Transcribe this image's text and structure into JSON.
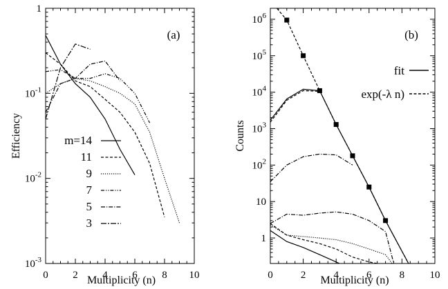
{
  "chart_data": [
    {
      "type": "line",
      "panel_label": "(a)",
      "xlabel": "Multiplicity (n)",
      "ylabel": "Efficiency",
      "xlim": [
        0,
        10
      ],
      "ylim": [
        0.001,
        1
      ],
      "yscale": "log",
      "grid": false,
      "legend_position": "bottom-left",
      "x_ticks": [
        0,
        2,
        4,
        6,
        8,
        10
      ],
      "y_ticks": [
        {
          "value": 1,
          "label": "1"
        },
        {
          "value": 0.1,
          "label": "10-1",
          "base": "10",
          "exp": "-1"
        },
        {
          "value": 0.01,
          "label": "10-2",
          "base": "10",
          "exp": "-2"
        },
        {
          "value": 0.001,
          "label": "10-3",
          "base": "10",
          "exp": "-3"
        }
      ],
      "series": [
        {
          "name": "m=14",
          "dash": "solid",
          "x": [
            0,
            1,
            2,
            3,
            4,
            5,
            6
          ],
          "y": [
            0.48,
            0.22,
            0.13,
            0.09,
            0.05,
            0.022,
            0.011
          ]
        },
        {
          "name": "11",
          "dash": "dashed",
          "x": [
            0,
            1,
            2,
            3,
            4,
            5,
            6,
            7,
            8
          ],
          "y": [
            0.3,
            0.22,
            0.14,
            0.12,
            0.085,
            0.06,
            0.035,
            0.015,
            0.0035
          ]
        },
        {
          "name": "9",
          "dash": "dotted",
          "x": [
            0,
            1,
            2,
            3,
            4,
            5,
            6,
            7,
            8,
            9
          ],
          "y": [
            0.1,
            0.13,
            0.15,
            0.14,
            0.12,
            0.1,
            0.075,
            0.035,
            0.01,
            0.003
          ]
        },
        {
          "name": "7",
          "dash": "dashdotdot",
          "x": [
            0,
            1,
            2,
            3,
            4,
            5,
            6,
            7
          ],
          "y": [
            0.18,
            0.19,
            0.15,
            0.15,
            0.17,
            0.15,
            0.1,
            0.045
          ]
        },
        {
          "name": "5",
          "dash": "dashdot",
          "x": [
            0,
            1,
            2,
            3,
            4,
            5
          ],
          "y": [
            0.06,
            0.13,
            0.15,
            0.22,
            0.24,
            0.14
          ]
        },
        {
          "name": "3",
          "dash": "longdash",
          "x": [
            0,
            1,
            2,
            3
          ],
          "y": [
            0.05,
            0.2,
            0.38,
            0.33
          ]
        }
      ]
    },
    {
      "type": "line",
      "panel_label": "(b)",
      "xlabel": "Multiplicity (n)",
      "ylabel": "Counts",
      "xlim": [
        0,
        10
      ],
      "ylim": [
        0.2,
        2000000
      ],
      "yscale": "log",
      "grid": false,
      "legend_position": "top-right",
      "x_ticks": [
        0,
        2,
        4,
        6,
        8,
        10
      ],
      "y_ticks": [
        {
          "value": 1000000,
          "label": "106",
          "base": "10",
          "exp": "6"
        },
        {
          "value": 100000,
          "label": "105",
          "base": "10",
          "exp": "5"
        },
        {
          "value": 10000,
          "label": "104",
          "base": "10",
          "exp": "4"
        },
        {
          "value": 1000,
          "label": "103",
          "base": "10",
          "exp": "3"
        },
        {
          "value": 100,
          "label": "102",
          "base": "10",
          "exp": "2"
        },
        {
          "value": 10,
          "label": "10"
        },
        {
          "value": 1,
          "label": "1"
        }
      ],
      "legend": [
        {
          "name": "fit",
          "dash": "solid"
        },
        {
          "name": "exp(-λ n)",
          "dash": "dashed"
        }
      ],
      "points": {
        "x": [
          1,
          2,
          3,
          4,
          5,
          6,
          7
        ],
        "y": [
          950000,
          100000,
          11000,
          1300,
          180,
          25,
          3
        ]
      },
      "series": [
        {
          "name": "exp(-λ n)",
          "dash": "dashed",
          "x": [
            0.4,
            1,
            2,
            3,
            4,
            5,
            6,
            7,
            8.4
          ],
          "y": [
            2000000,
            950000,
            100000,
            11000,
            1300,
            180,
            25,
            3,
            0.2
          ]
        },
        {
          "name": "fit",
          "dash": "solid",
          "x": [
            0,
            1,
            2,
            3,
            4,
            5,
            6,
            7,
            8.4
          ],
          "y": [
            1700,
            6500,
            12000,
            11000,
            1300,
            180,
            25,
            3,
            0.2
          ]
        },
        {
          "dash": "dashed",
          "x": [
            0,
            1,
            2,
            3
          ],
          "y": [
            1500,
            6000,
            11000,
            10500
          ]
        },
        {
          "dash": "dashdot",
          "x": [
            0,
            1,
            2,
            3,
            4,
            5
          ],
          "y": [
            35,
            100,
            170,
            200,
            190,
            100
          ]
        },
        {
          "dash": "dashdot",
          "x": [
            0,
            1,
            2,
            3,
            4,
            5,
            6,
            7,
            7.5
          ],
          "y": [
            2.5,
            4.5,
            4.2,
            4.8,
            5.2,
            4.5,
            3,
            1.5,
            0.2
          ]
        },
        {
          "dash": "dotted",
          "x": [
            0,
            1,
            2,
            3,
            4,
            5,
            6,
            7,
            7.4
          ],
          "y": [
            2.3,
            1.2,
            1.1,
            1.0,
            0.9,
            0.7,
            0.5,
            0.35,
            0.2
          ]
        },
        {
          "dash": "dashed",
          "x": [
            0,
            1,
            2,
            3,
            4,
            5,
            6,
            6.5
          ],
          "y": [
            2.5,
            1.2,
            0.9,
            0.7,
            0.5,
            0.3,
            0.22,
            0.2
          ]
        },
        {
          "dash": "solid",
          "x": [
            0,
            1,
            2,
            3,
            4,
            4.2
          ],
          "y": [
            1.6,
            0.8,
            0.55,
            0.35,
            0.22,
            0.2
          ]
        }
      ]
    }
  ]
}
